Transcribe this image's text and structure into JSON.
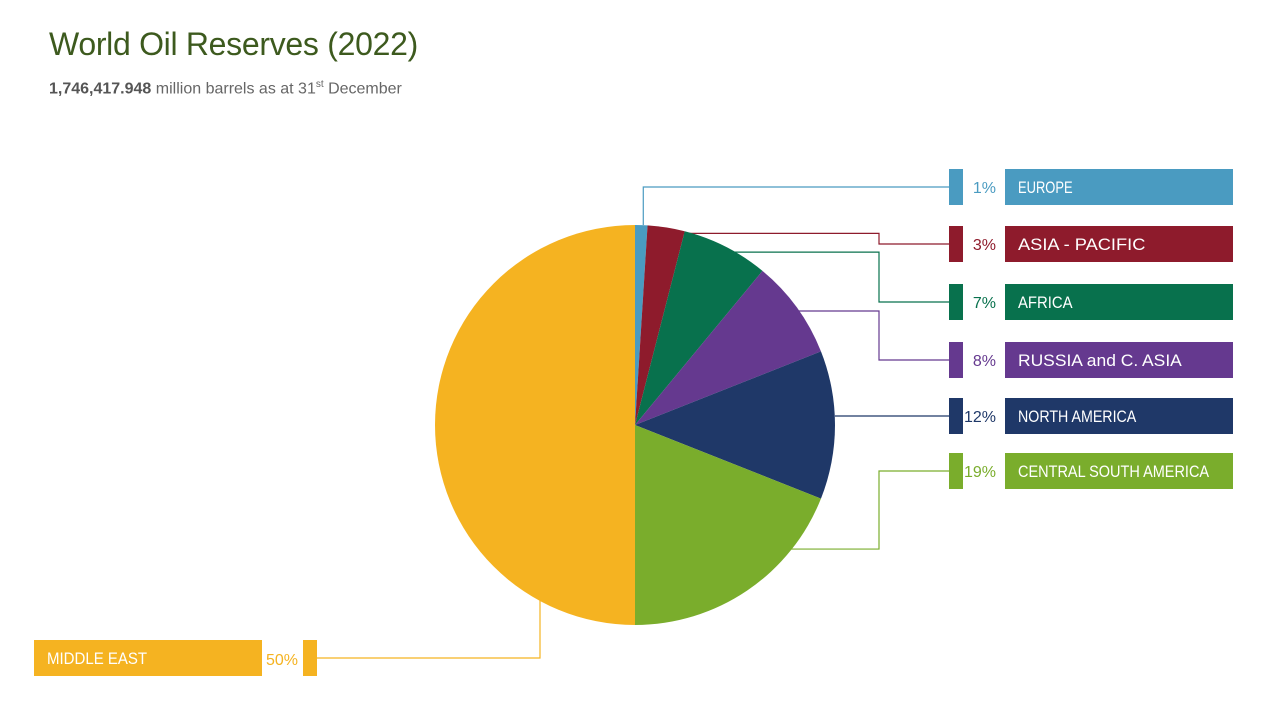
{
  "header": {
    "title": "World Oil Reserves (2022)",
    "total": "1,746,417.948",
    "subtitle_mid": " million barrels as at 31",
    "subtitle_sup": "st",
    "subtitle_end": " December"
  },
  "chart_data": {
    "type": "pie",
    "title": "World Oil Reserves (2022)",
    "unit": "million barrels",
    "total": 1746417.948,
    "start": "12 o'clock",
    "direction": "clockwise",
    "slices": [
      {
        "label": "EUROPE",
        "value": 1,
        "pct_label": "1%",
        "color": "#4a9bc1"
      },
      {
        "label": "ASIA - PACIFIC",
        "value": 3,
        "pct_label": "3%",
        "color": "#8e1b2c"
      },
      {
        "label": "AFRICA",
        "value": 7,
        "pct_label": "7%",
        "color": "#08714d"
      },
      {
        "label": "RUSSIA and C. ASIA",
        "value": 8,
        "pct_label": "8%",
        "color": "#65398f"
      },
      {
        "label": "NORTH AMERICA",
        "value": 12,
        "pct_label": "12%",
        "color": "#1f3868"
      },
      {
        "label": "CENTRAL SOUTH AMERICA",
        "value": 19,
        "pct_label": "19%",
        "color": "#7aad2c"
      },
      {
        "label": "MIDDLE EAST",
        "value": 50,
        "pct_label": "50%",
        "color": "#f5b321"
      }
    ]
  }
}
